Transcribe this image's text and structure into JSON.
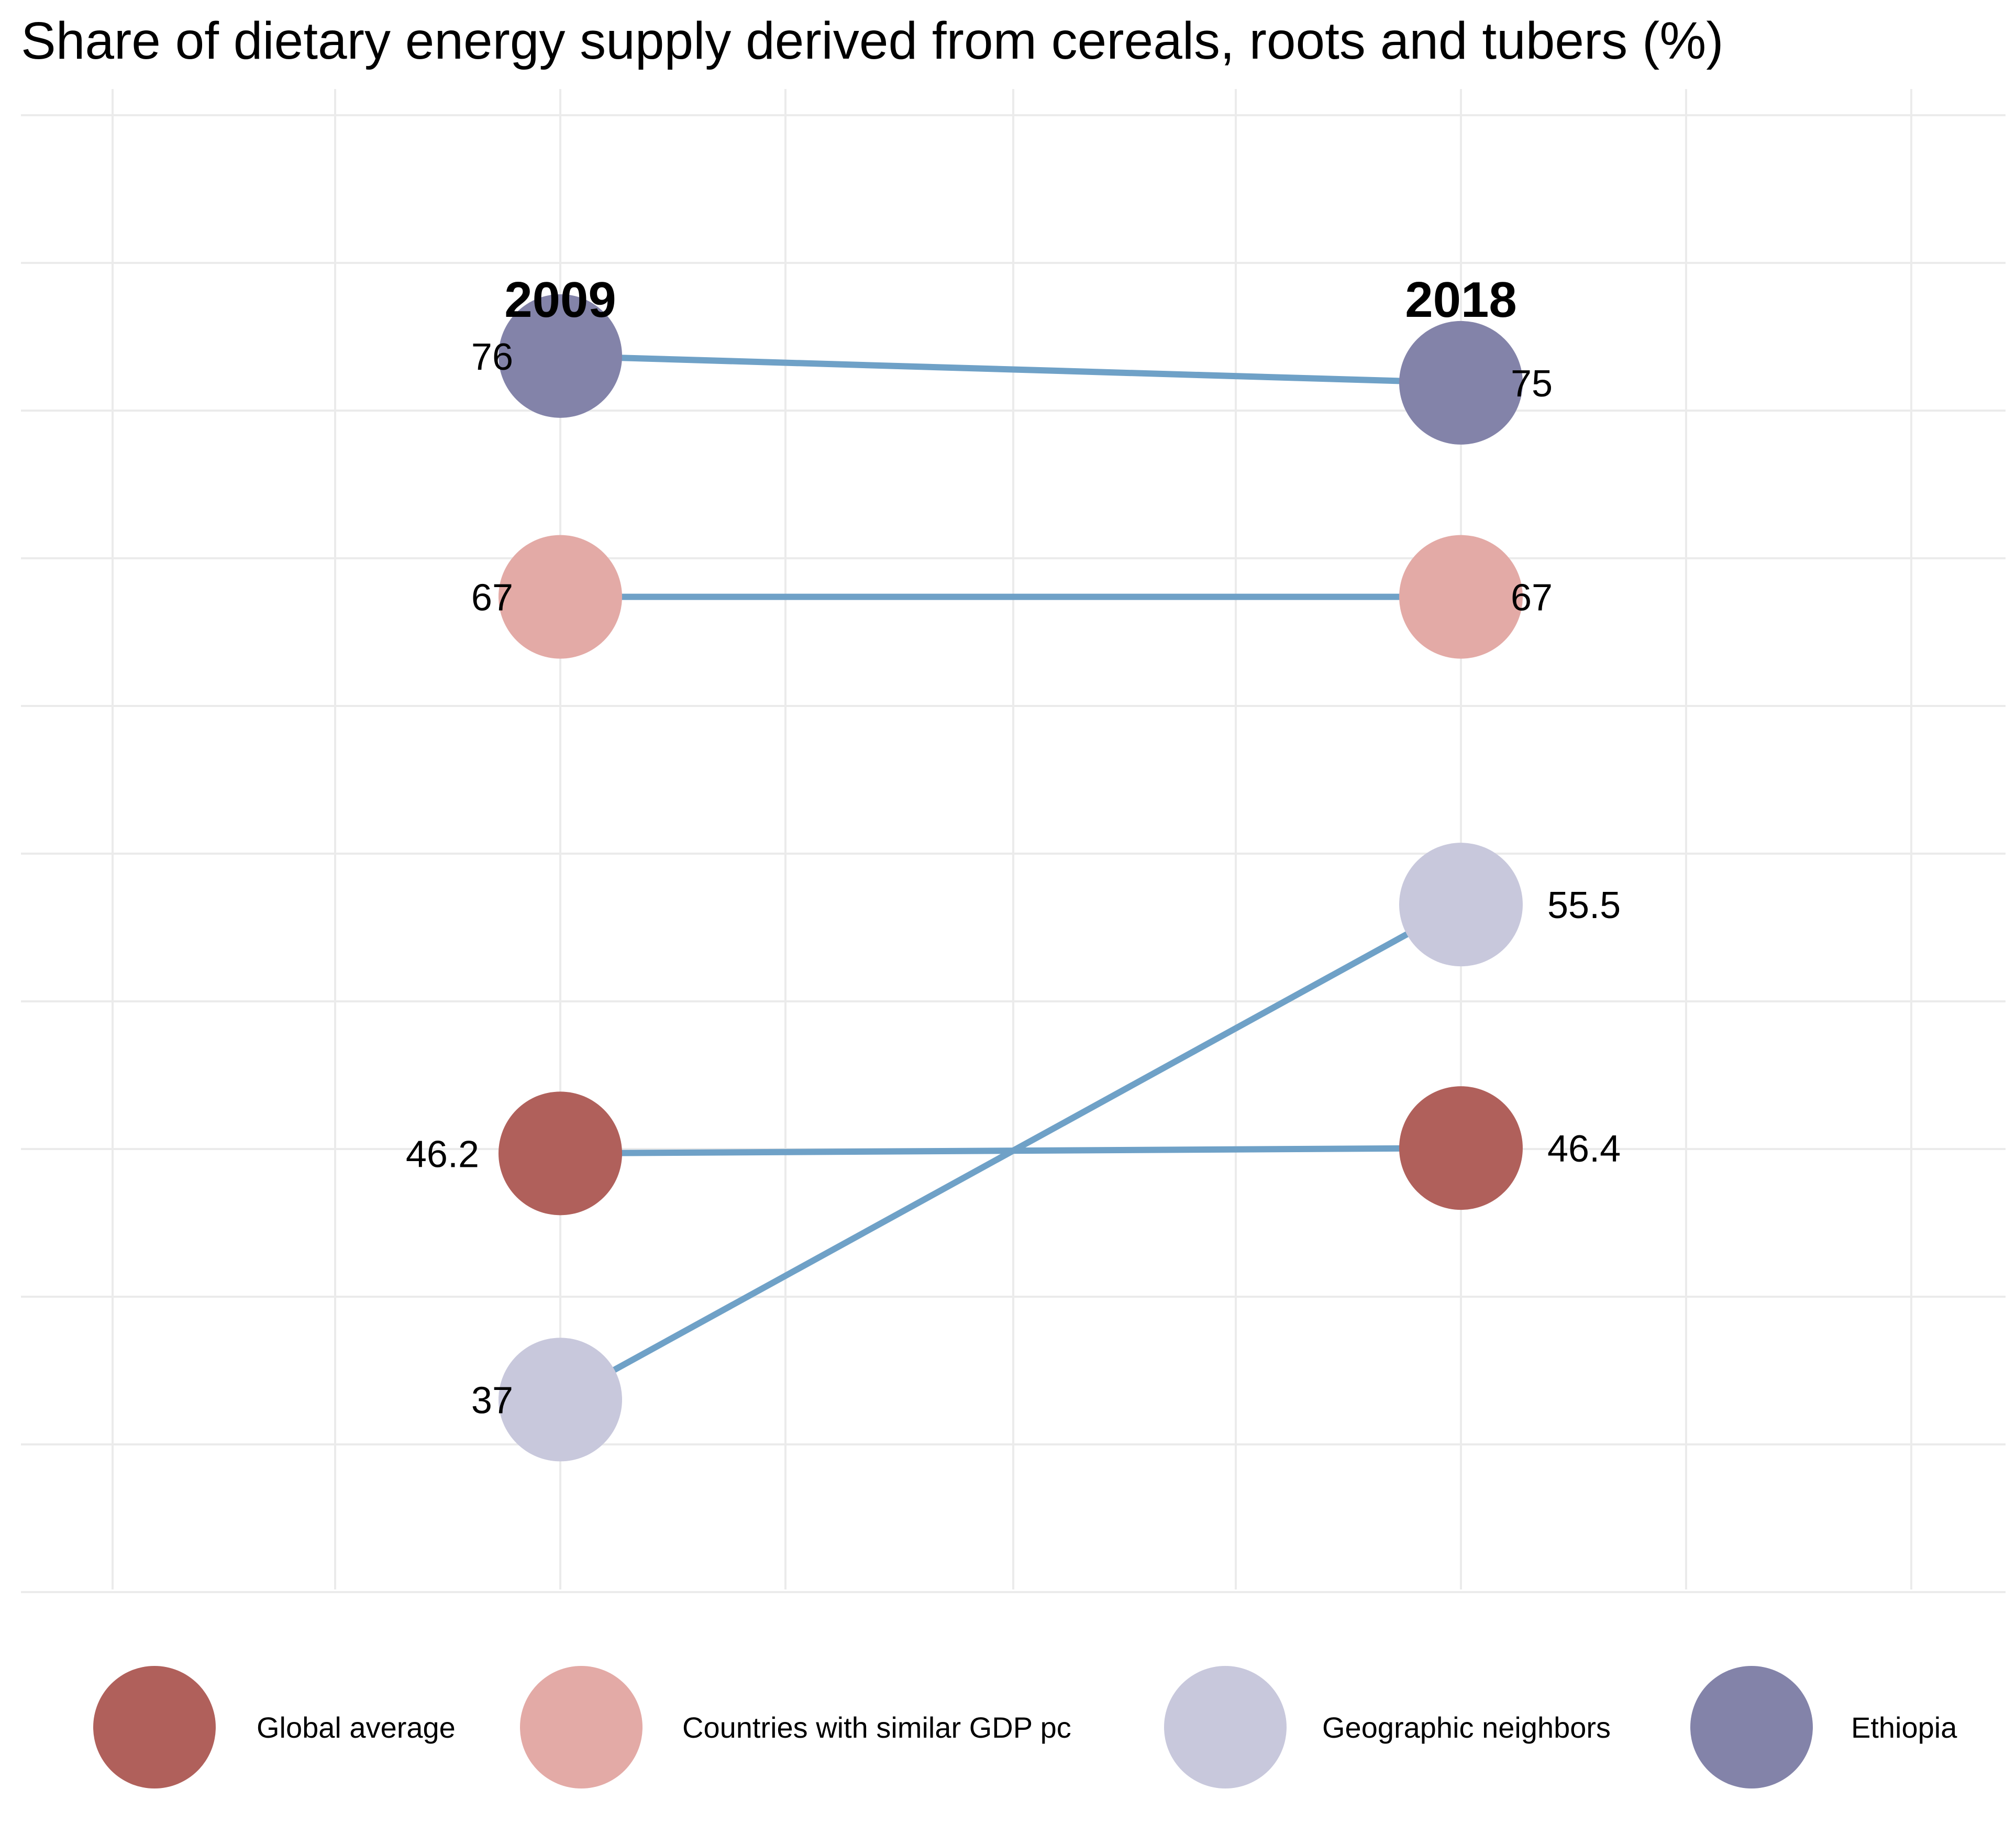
{
  "chart_data": {
    "type": "slope",
    "title": "Share of dietary energy supply derived from cereals, roots and tubers (%)",
    "x": [
      "2009",
      "2018"
    ],
    "series": [
      {
        "name": "Global average",
        "values": [
          46.2,
          46.4
        ],
        "labels": [
          "46.2",
          "46.4"
        ],
        "color": "#b0605b"
      },
      {
        "name": "Countries with similar GDP pc",
        "values": [
          67,
          67
        ],
        "labels": [
          "67",
          "67"
        ],
        "color": "#e3aaa6"
      },
      {
        "name": "Geographic neighbors",
        "values": [
          37,
          55.5
        ],
        "labels": [
          "37",
          "55.5"
        ],
        "color": "#c8c8dc"
      },
      {
        "name": "Ethiopia",
        "values": [
          76,
          75
        ],
        "labels": [
          "76",
          "75"
        ],
        "color": "#8383a9"
      }
    ],
    "line_color": "#6fa1c7",
    "grid": true,
    "legend_position": "bottom"
  }
}
